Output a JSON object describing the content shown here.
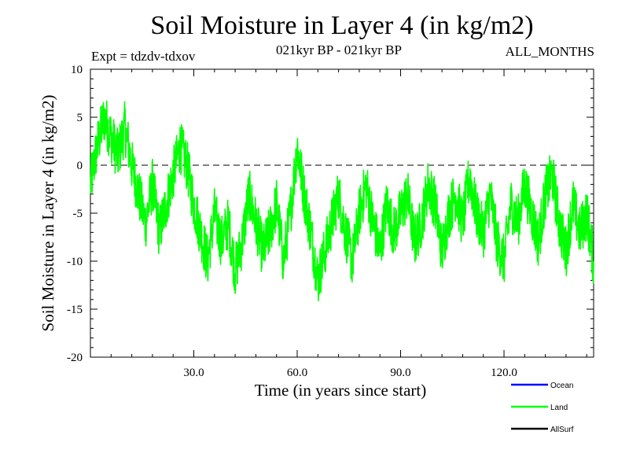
{
  "chart_data": {
    "type": "line",
    "title": "Soil Moisture in Layer 4 (in kg/m2)",
    "subtitle_left": "Expt = tdzdv-tdxov",
    "subtitle_center": "021kyr BP - 021kyr BP",
    "subtitle_right": "ALL_MONTHS",
    "xlabel": "Time (in years since start)",
    "ylabel": "Soil Moisture in Layer 4 (in kg/m2)",
    "xlim": [
      0,
      146
    ],
    "ylim": [
      -20,
      10
    ],
    "x_ticks": [
      30,
      60,
      90,
      120
    ],
    "x_tick_labels": [
      "30.0",
      "60.0",
      "90.0",
      "120.0"
    ],
    "y_ticks": [
      10,
      5,
      0,
      -5,
      -10,
      -15,
      -20
    ],
    "y_tick_labels": [
      "10",
      "5",
      "0",
      "-5",
      "-10",
      "-15",
      "-20"
    ],
    "reference_line": 0,
    "legend": [
      {
        "name": "Ocean",
        "color": "#0000ff"
      },
      {
        "name": "Land",
        "color": "#00ff00"
      },
      {
        "name": "AllSurf",
        "color": "#000000"
      }
    ],
    "series": [
      {
        "name": "Land",
        "color": "#00ff00",
        "x": [
          0,
          2,
          4,
          6,
          8,
          10,
          12,
          14,
          16,
          18,
          20,
          22,
          24,
          26,
          28,
          30,
          32,
          34,
          36,
          38,
          40,
          42,
          44,
          46,
          48,
          50,
          52,
          54,
          56,
          58,
          60,
          62,
          64,
          66,
          68,
          70,
          72,
          74,
          76,
          78,
          80,
          82,
          84,
          86,
          88,
          90,
          92,
          94,
          96,
          98,
          100,
          102,
          104,
          106,
          108,
          110,
          112,
          114,
          116,
          118,
          120,
          122,
          124,
          126,
          128,
          130,
          132,
          134,
          136,
          138,
          140,
          142,
          144,
          146
        ],
        "values": [
          -2,
          2,
          5,
          3,
          1,
          4,
          0,
          -3,
          -6,
          -2,
          -7,
          -4,
          -1,
          2,
          0,
          -4,
          -7,
          -10,
          -5,
          -8,
          -6,
          -11,
          -8,
          -3,
          -6,
          -9,
          -7,
          -4,
          -10,
          -5,
          2,
          -3,
          -7,
          -12,
          -9,
          -6,
          -3,
          -7,
          -10,
          -5,
          -2,
          -6,
          -9,
          -4,
          -7,
          -5,
          -3,
          -8,
          -6,
          -2,
          -4,
          -9,
          -5,
          -3,
          -6,
          -1,
          -5,
          -7,
          -3,
          -8,
          -10,
          -4,
          -6,
          -2,
          -5,
          -8,
          -3,
          -1,
          -6,
          -9,
          -4,
          -7,
          -5,
          -10
        ]
      }
    ]
  }
}
